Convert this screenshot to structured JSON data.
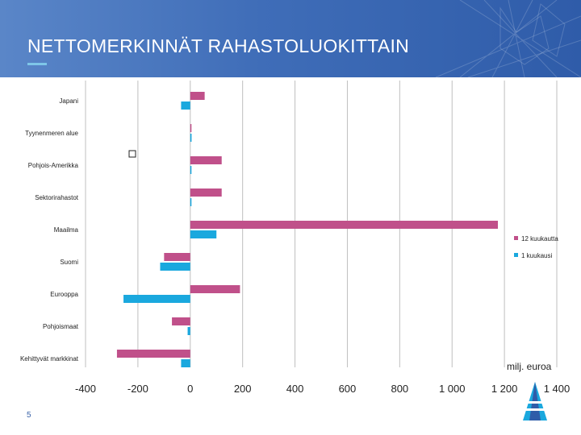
{
  "title": "NETTOMERKINNÄT RAHASTOLUOKITTAIN",
  "page_number": "5",
  "colors": {
    "series_12m": "#c0508a",
    "series_1m": "#1aa8de",
    "header": "#3f6db8",
    "grid": "#bfbfbf"
  },
  "chart_data": {
    "type": "bar",
    "orientation": "horizontal",
    "categories": [
      "Japani",
      "Tyynenmeren alue",
      "Pohjois-Amerikka",
      "Sektorirahastot",
      "Maailma",
      "Suomi",
      "Eurooppa",
      "Pohjoismaat",
      "Kehittyvät markkinat"
    ],
    "series": [
      {
        "name": "12 kuukautta",
        "values": [
          55,
          0,
          120,
          120,
          1175,
          -100,
          190,
          -70,
          -280
        ]
      },
      {
        "name": "1 kuukausi",
        "values": [
          -35,
          5,
          0,
          0,
          100,
          -115,
          -255,
          -10,
          -35
        ]
      }
    ],
    "x_ticks": [
      "-400",
      "-200",
      "0",
      "200",
      "400",
      "600",
      "800",
      "1 000",
      "1 200",
      "1 400"
    ],
    "xlim": [
      -400,
      1400
    ],
    "unit_label": "milj. euroa",
    "grid": true,
    "legend_position": "right"
  }
}
